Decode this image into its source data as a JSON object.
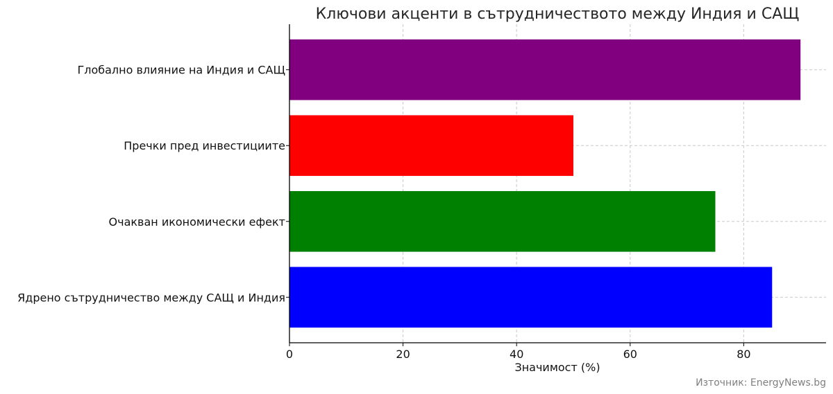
{
  "chart_data": {
    "type": "bar",
    "orientation": "horizontal",
    "title": "Ключови акценти в сътрудничеството между Индия и САЩ",
    "xlabel": "Значимост (%)",
    "ylabel": "",
    "categories": [
      "Ядрено сътрудничество между САЩ и Индия",
      "Очакван икономически ефект",
      "Пречки пред инвестициите",
      "Глобално влияние на Индия и САЩ"
    ],
    "values": [
      85,
      75,
      50,
      90
    ],
    "colors": [
      "#0000ff",
      "#008000",
      "#ff0000",
      "#800080"
    ],
    "xlim": [
      0,
      94.5
    ],
    "xticks": [
      0,
      20,
      40,
      60,
      80
    ],
    "grid": true
  },
  "source_note": "Източник: EnergyNews.bg"
}
